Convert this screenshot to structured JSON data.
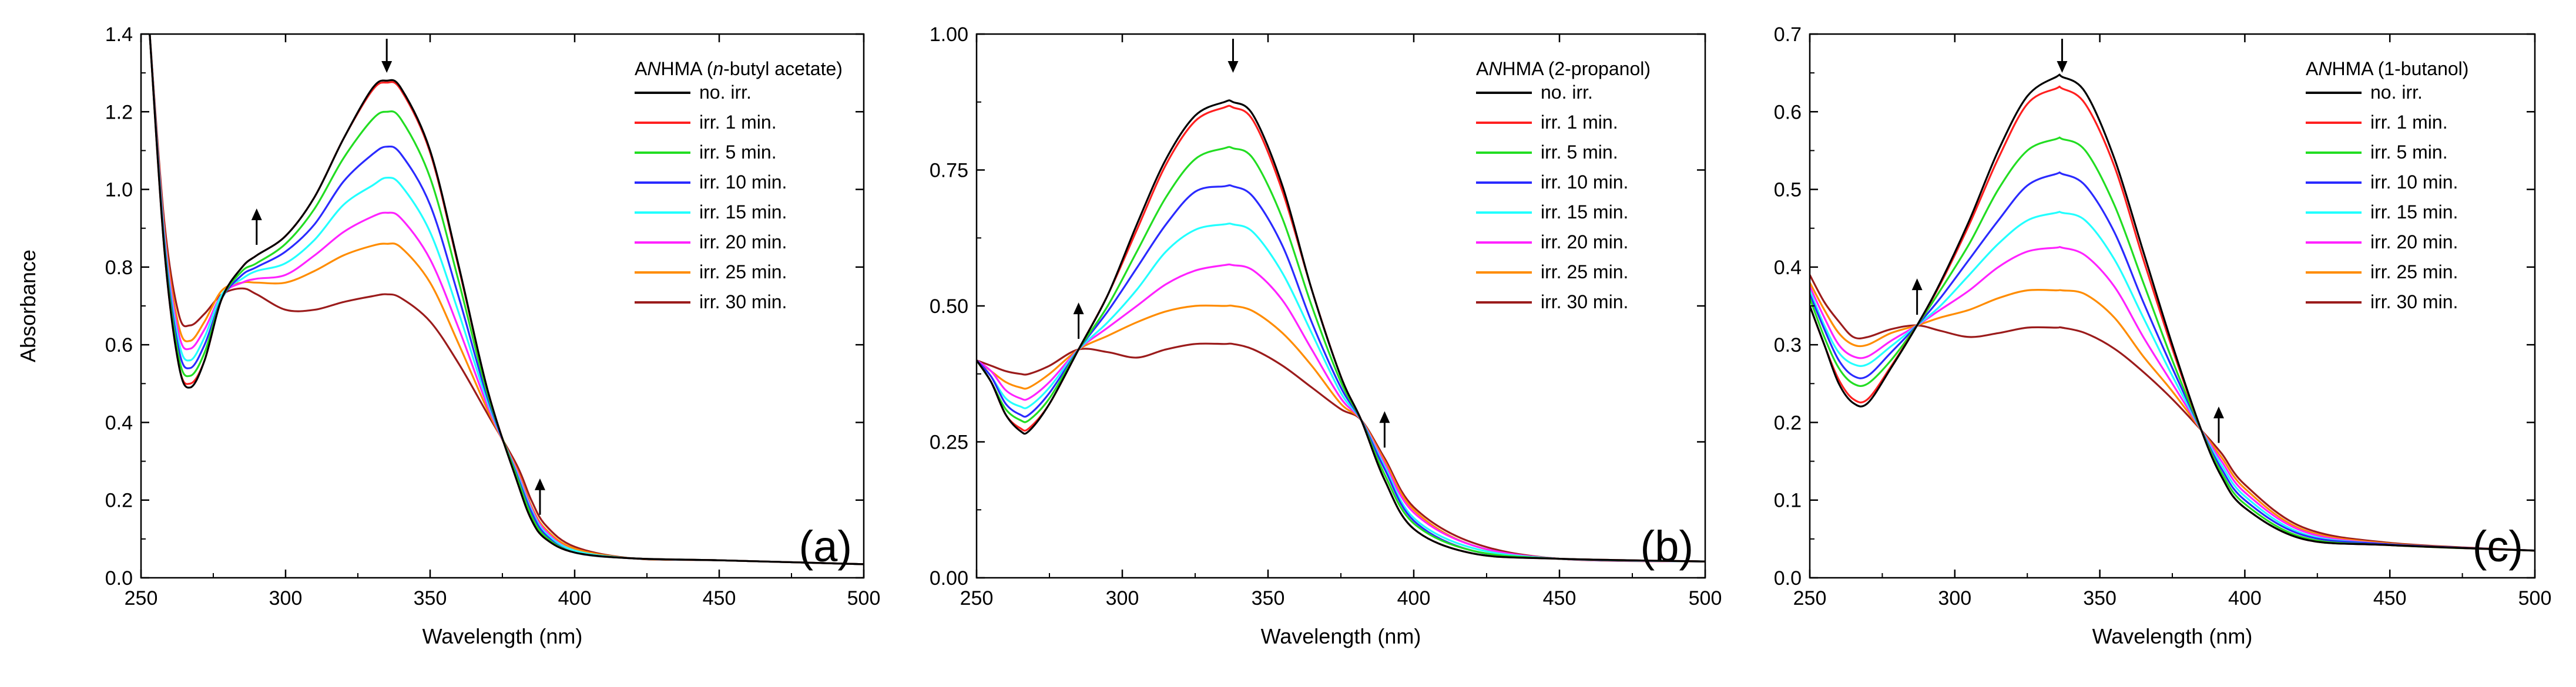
{
  "figure": {
    "series_names": [
      "no. irr.",
      "irr. 1 min.",
      "irr. 5 min.",
      "irr. 10 min.",
      "irr. 15 min.",
      "irr. 20 min.",
      "irr. 25 min.",
      "irr. 30 min."
    ],
    "series_colors": [
      "#000000",
      "#ff2020",
      "#22dd22",
      "#2a2aff",
      "#22ffff",
      "#ff22ff",
      "#ff8c00",
      "#9b1b1b"
    ]
  },
  "chart_data": [
    {
      "type": "line",
      "panel_tag": "(a)",
      "legend_title": {
        "prefix": "A",
        "ital1": "N",
        "mid": "HMA (",
        "ital2": "n",
        "suffix": "-butyl acetate)"
      },
      "xlabel": "Wavelength (nm)",
      "ylabel": "Absorbance",
      "xlim": [
        250,
        500
      ],
      "ylim": [
        0.0,
        1.4
      ],
      "xticks": [
        250,
        300,
        350,
        400,
        450,
        500
      ],
      "yticks": [
        0.0,
        0.2,
        0.4,
        0.6,
        0.8,
        1.0,
        1.2,
        1.4
      ],
      "ytick_labels": [
        "0.0",
        "0.2",
        "0.4",
        "0.6",
        "0.8",
        "1.0",
        "1.2",
        "1.4"
      ],
      "arrows": [
        {
          "x": 335,
          "dir": "down"
        },
        {
          "x": 290,
          "dir": "up"
        },
        {
          "x": 388,
          "dir": "up"
        }
      ],
      "x": [
        253,
        258,
        263,
        267,
        272,
        278,
        285,
        290,
        300,
        310,
        320,
        330,
        335,
        340,
        350,
        360,
        370,
        380,
        385,
        390,
        400,
        420,
        450,
        500
      ],
      "series": [
        {
          "name": "no. irr.",
          "values": [
            1.4,
            0.85,
            0.55,
            0.49,
            0.56,
            0.72,
            0.8,
            0.83,
            0.88,
            0.98,
            1.13,
            1.26,
            1.28,
            1.26,
            1.1,
            0.8,
            0.48,
            0.25,
            0.15,
            0.1,
            0.065,
            0.05,
            0.045,
            0.035
          ]
        },
        {
          "name": "irr. 1 min.",
          "values": [
            1.4,
            0.85,
            0.55,
            0.5,
            0.56,
            0.72,
            0.8,
            0.83,
            0.88,
            0.98,
            1.13,
            1.255,
            1.275,
            1.255,
            1.095,
            0.795,
            0.48,
            0.25,
            0.15,
            0.1,
            0.065,
            0.05,
            0.045,
            0.035
          ]
        },
        {
          "name": "irr. 5 min.",
          "values": [
            1.4,
            0.86,
            0.57,
            0.52,
            0.58,
            0.72,
            0.79,
            0.81,
            0.86,
            0.95,
            1.08,
            1.18,
            1.2,
            1.18,
            1.03,
            0.76,
            0.47,
            0.26,
            0.16,
            0.105,
            0.065,
            0.05,
            0.045,
            0.035
          ]
        },
        {
          "name": "irr. 10 min.",
          "values": [
            1.4,
            0.87,
            0.59,
            0.54,
            0.6,
            0.72,
            0.78,
            0.8,
            0.84,
            0.91,
            1.02,
            1.09,
            1.11,
            1.09,
            0.96,
            0.72,
            0.46,
            0.265,
            0.17,
            0.11,
            0.065,
            0.05,
            0.045,
            0.035
          ]
        },
        {
          "name": "irr. 15 min.",
          "values": [
            1.4,
            0.88,
            0.61,
            0.56,
            0.62,
            0.73,
            0.77,
            0.79,
            0.81,
            0.87,
            0.96,
            1.01,
            1.03,
            1.01,
            0.89,
            0.68,
            0.45,
            0.27,
            0.175,
            0.115,
            0.07,
            0.05,
            0.045,
            0.035
          ]
        },
        {
          "name": "irr. 20 min.",
          "values": [
            1.4,
            0.89,
            0.63,
            0.59,
            0.64,
            0.73,
            0.76,
            0.77,
            0.78,
            0.83,
            0.89,
            0.93,
            0.94,
            0.925,
            0.82,
            0.64,
            0.44,
            0.275,
            0.18,
            0.12,
            0.07,
            0.05,
            0.045,
            0.035
          ]
        },
        {
          "name": "irr. 25 min.",
          "values": [
            1.4,
            0.9,
            0.65,
            0.61,
            0.66,
            0.74,
            0.76,
            0.76,
            0.76,
            0.79,
            0.83,
            0.855,
            0.86,
            0.85,
            0.76,
            0.6,
            0.43,
            0.28,
            0.185,
            0.125,
            0.075,
            0.05,
            0.045,
            0.035
          ]
        },
        {
          "name": "irr. 30 min.",
          "values": [
            1.4,
            0.92,
            0.68,
            0.65,
            0.68,
            0.73,
            0.745,
            0.73,
            0.69,
            0.69,
            0.71,
            0.725,
            0.73,
            0.72,
            0.66,
            0.55,
            0.42,
            0.29,
            0.2,
            0.135,
            0.08,
            0.05,
            0.045,
            0.035
          ]
        }
      ]
    },
    {
      "type": "line",
      "panel_tag": "(b)",
      "legend_title": {
        "prefix": "A",
        "ital1": "N",
        "mid": "HMA (2-propanol)"
      },
      "xlabel": "Wavelength (nm)",
      "ylabel": "",
      "xlim": [
        250,
        500
      ],
      "ylim": [
        0.0,
        1.0
      ],
      "xticks": [
        250,
        300,
        350,
        400,
        450,
        500
      ],
      "yticks": [
        0.0,
        0.25,
        0.5,
        0.75,
        1.0
      ],
      "ytick_labels": [
        "0.00",
        "0.25",
        "0.50",
        "0.75",
        "1.00"
      ],
      "arrows": [
        {
          "x": 338,
          "dir": "down"
        },
        {
          "x": 285,
          "dir": "up"
        },
        {
          "x": 390,
          "dir": "up"
        }
      ],
      "x": [
        250,
        255,
        260,
        265,
        268,
        275,
        285,
        295,
        305,
        315,
        325,
        335,
        338,
        345,
        355,
        365,
        375,
        382,
        390,
        400,
        420,
        450,
        500
      ],
      "series": [
        {
          "name": "no. irr.",
          "values": [
            0.4,
            0.36,
            0.3,
            0.27,
            0.27,
            0.32,
            0.42,
            0.52,
            0.65,
            0.77,
            0.85,
            0.875,
            0.875,
            0.85,
            0.72,
            0.53,
            0.37,
            0.29,
            0.18,
            0.09,
            0.045,
            0.035,
            0.03
          ]
        },
        {
          "name": "irr. 1 min.",
          "values": [
            0.4,
            0.36,
            0.3,
            0.275,
            0.275,
            0.32,
            0.42,
            0.52,
            0.64,
            0.76,
            0.84,
            0.865,
            0.865,
            0.84,
            0.71,
            0.53,
            0.37,
            0.29,
            0.18,
            0.09,
            0.045,
            0.035,
            0.03
          ]
        },
        {
          "name": "irr. 5 min.",
          "values": [
            0.4,
            0.36,
            0.31,
            0.29,
            0.29,
            0.33,
            0.42,
            0.5,
            0.6,
            0.7,
            0.77,
            0.79,
            0.79,
            0.77,
            0.66,
            0.5,
            0.36,
            0.29,
            0.19,
            0.1,
            0.05,
            0.035,
            0.03
          ]
        },
        {
          "name": "irr. 10 min.",
          "values": [
            0.4,
            0.37,
            0.32,
            0.3,
            0.3,
            0.34,
            0.42,
            0.49,
            0.57,
            0.65,
            0.71,
            0.72,
            0.72,
            0.7,
            0.61,
            0.47,
            0.35,
            0.29,
            0.2,
            0.105,
            0.05,
            0.035,
            0.03
          ]
        },
        {
          "name": "irr. 15 min.",
          "values": [
            0.4,
            0.37,
            0.33,
            0.315,
            0.315,
            0.35,
            0.42,
            0.47,
            0.53,
            0.6,
            0.64,
            0.65,
            0.65,
            0.635,
            0.56,
            0.45,
            0.34,
            0.29,
            0.205,
            0.11,
            0.055,
            0.035,
            0.03
          ]
        },
        {
          "name": "irr. 20 min.",
          "values": [
            0.4,
            0.38,
            0.345,
            0.33,
            0.33,
            0.36,
            0.42,
            0.46,
            0.5,
            0.54,
            0.565,
            0.575,
            0.575,
            0.565,
            0.51,
            0.42,
            0.33,
            0.29,
            0.21,
            0.12,
            0.06,
            0.035,
            0.03
          ]
        },
        {
          "name": "irr. 25 min.",
          "values": [
            0.4,
            0.38,
            0.36,
            0.35,
            0.35,
            0.375,
            0.42,
            0.445,
            0.47,
            0.49,
            0.5,
            0.5,
            0.5,
            0.49,
            0.45,
            0.39,
            0.32,
            0.29,
            0.215,
            0.125,
            0.06,
            0.035,
            0.03
          ]
        },
        {
          "name": "irr. 30 min.",
          "values": [
            0.4,
            0.39,
            0.38,
            0.375,
            0.375,
            0.39,
            0.42,
            0.415,
            0.405,
            0.42,
            0.43,
            0.43,
            0.43,
            0.42,
            0.39,
            0.35,
            0.31,
            0.29,
            0.22,
            0.13,
            0.065,
            0.035,
            0.03
          ]
        }
      ]
    },
    {
      "type": "line",
      "panel_tag": "(c)",
      "legend_title": {
        "prefix": "A",
        "ital1": "N",
        "mid": "HMA (1-butanol)"
      },
      "xlabel": "Wavelength (nm)",
      "ylabel": "",
      "xlim": [
        250,
        500
      ],
      "ylim": [
        0.0,
        0.7
      ],
      "xticks": [
        250,
        300,
        350,
        400,
        450,
        500
      ],
      "yticks": [
        0.0,
        0.1,
        0.2,
        0.3,
        0.4,
        0.5,
        0.6,
        0.7
      ],
      "ytick_labels": [
        "0.0",
        "0.1",
        "0.2",
        "0.3",
        "0.4",
        "0.5",
        "0.6",
        "0.7"
      ],
      "arrows": [
        {
          "x": 337,
          "dir": "down"
        },
        {
          "x": 287,
          "dir": "up"
        },
        {
          "x": 391,
          "dir": "up"
        }
      ],
      "x": [
        250,
        255,
        260,
        265,
        270,
        278,
        287,
        295,
        305,
        315,
        325,
        335,
        337,
        345,
        355,
        365,
        375,
        385,
        392,
        400,
        420,
        450,
        500
      ],
      "series": [
        {
          "name": "no. irr.",
          "values": [
            0.35,
            0.3,
            0.25,
            0.225,
            0.225,
            0.27,
            0.325,
            0.38,
            0.46,
            0.55,
            0.62,
            0.645,
            0.645,
            0.625,
            0.54,
            0.42,
            0.3,
            0.19,
            0.13,
            0.09,
            0.05,
            0.042,
            0.035
          ]
        },
        {
          "name": "irr. 1 min.",
          "values": [
            0.35,
            0.3,
            0.255,
            0.23,
            0.23,
            0.272,
            0.325,
            0.378,
            0.455,
            0.54,
            0.61,
            0.63,
            0.63,
            0.61,
            0.53,
            0.41,
            0.295,
            0.19,
            0.13,
            0.09,
            0.05,
            0.042,
            0.035
          ]
        },
        {
          "name": "irr. 5 min.",
          "values": [
            0.36,
            0.31,
            0.27,
            0.25,
            0.25,
            0.28,
            0.325,
            0.37,
            0.43,
            0.5,
            0.55,
            0.565,
            0.565,
            0.55,
            0.48,
            0.38,
            0.28,
            0.19,
            0.135,
            0.095,
            0.052,
            0.042,
            0.035
          ]
        },
        {
          "name": "irr. 10 min.",
          "values": [
            0.365,
            0.32,
            0.28,
            0.26,
            0.26,
            0.29,
            0.325,
            0.36,
            0.41,
            0.46,
            0.505,
            0.52,
            0.52,
            0.505,
            0.445,
            0.355,
            0.27,
            0.19,
            0.14,
            0.1,
            0.055,
            0.043,
            0.035
          ]
        },
        {
          "name": "irr. 15 min.",
          "values": [
            0.37,
            0.325,
            0.29,
            0.275,
            0.275,
            0.298,
            0.325,
            0.35,
            0.39,
            0.43,
            0.46,
            0.47,
            0.47,
            0.46,
            0.41,
            0.335,
            0.26,
            0.19,
            0.145,
            0.105,
            0.057,
            0.043,
            0.035
          ]
        },
        {
          "name": "irr. 20 min.",
          "values": [
            0.375,
            0.335,
            0.3,
            0.285,
            0.285,
            0.305,
            0.325,
            0.345,
            0.37,
            0.4,
            0.42,
            0.425,
            0.425,
            0.415,
            0.375,
            0.31,
            0.25,
            0.19,
            0.15,
            0.11,
            0.06,
            0.043,
            0.035
          ]
        },
        {
          "name": "irr. 25 min.",
          "values": [
            0.38,
            0.345,
            0.315,
            0.3,
            0.3,
            0.315,
            0.325,
            0.335,
            0.345,
            0.36,
            0.37,
            0.37,
            0.37,
            0.365,
            0.335,
            0.285,
            0.24,
            0.19,
            0.155,
            0.115,
            0.062,
            0.044,
            0.035
          ]
        },
        {
          "name": "irr. 30 min.",
          "values": [
            0.39,
            0.355,
            0.33,
            0.31,
            0.31,
            0.32,
            0.325,
            0.318,
            0.31,
            0.315,
            0.322,
            0.322,
            0.322,
            0.315,
            0.295,
            0.265,
            0.23,
            0.19,
            0.16,
            0.12,
            0.065,
            0.045,
            0.035
          ]
        }
      ]
    }
  ]
}
